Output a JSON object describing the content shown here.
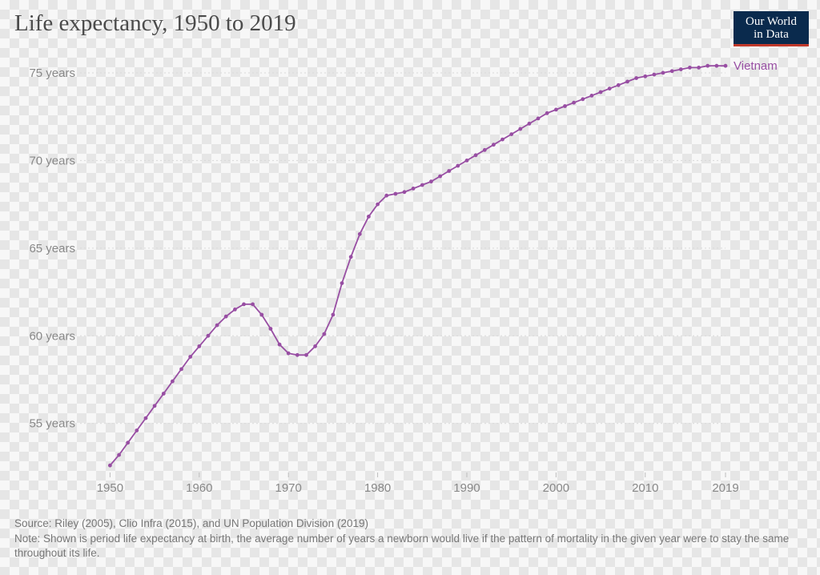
{
  "title": "Life expectancy, 1950 to 2019",
  "logo": {
    "line1": "Our World",
    "line2": "in Data"
  },
  "footer": {
    "source": "Source: Riley (2005), Clio Infra (2015), and UN Population Division (2019)",
    "note": "Note: Shown is period life expectancy at birth, the average number of years a newborn would live if the pattern of mortality in the given year were to stay the same throughout its life."
  },
  "chart": {
    "type": "line",
    "background_color": "transparent",
    "grid_color": "#d9d9d9",
    "axis_label_color": "#888888",
    "title_color": "#4b4b4b",
    "title_fontsize": 29,
    "label_fontsize": 15,
    "xlim": [
      1947,
      2019
    ],
    "ylim": [
      52.2,
      75.5
    ],
    "xticks": [
      1950,
      1960,
      1970,
      1980,
      1990,
      2000,
      2010,
      2019
    ],
    "xtick_labels": [
      "1950",
      "1960",
      "1970",
      "1980",
      "1990",
      "2000",
      "2010",
      "2019"
    ],
    "yticks": [
      55,
      60,
      65,
      70,
      75
    ],
    "ytick_labels": [
      "55 years",
      "60 years",
      "65 years",
      "70 years",
      "75 years"
    ],
    "line_width": 1.8,
    "marker_radius": 2.4,
    "series": [
      {
        "name": "Vietnam",
        "label": "Vietnam",
        "color": "#984ea3",
        "x": [
          1950,
          1951,
          1952,
          1953,
          1954,
          1955,
          1956,
          1957,
          1958,
          1959,
          1960,
          1961,
          1962,
          1963,
          1964,
          1965,
          1966,
          1967,
          1968,
          1969,
          1970,
          1971,
          1972,
          1973,
          1974,
          1975,
          1976,
          1977,
          1978,
          1979,
          1980,
          1981,
          1982,
          1983,
          1984,
          1985,
          1986,
          1987,
          1988,
          1989,
          1990,
          1991,
          1992,
          1993,
          1994,
          1995,
          1996,
          1997,
          1998,
          1999,
          2000,
          2001,
          2002,
          2003,
          2004,
          2005,
          2006,
          2007,
          2008,
          2009,
          2010,
          2011,
          2012,
          2013,
          2014,
          2015,
          2016,
          2017,
          2018,
          2019
        ],
        "y": [
          52.6,
          53.2,
          53.9,
          54.6,
          55.3,
          56.0,
          56.7,
          57.4,
          58.1,
          58.8,
          59.4,
          60.0,
          60.6,
          61.1,
          61.5,
          61.8,
          61.8,
          61.2,
          60.4,
          59.5,
          59.0,
          58.9,
          58.9,
          59.4,
          60.1,
          61.2,
          63.0,
          64.5,
          65.8,
          66.8,
          67.5,
          68.0,
          68.1,
          68.2,
          68.4,
          68.6,
          68.8,
          69.1,
          69.4,
          69.7,
          70.0,
          70.3,
          70.6,
          70.9,
          71.2,
          71.5,
          71.8,
          72.1,
          72.4,
          72.7,
          72.9,
          73.1,
          73.3,
          73.5,
          73.7,
          73.9,
          74.1,
          74.3,
          74.5,
          74.7,
          74.8,
          74.9,
          75.0,
          75.1,
          75.2,
          75.3,
          75.3,
          75.4,
          75.4,
          75.4
        ]
      }
    ]
  }
}
